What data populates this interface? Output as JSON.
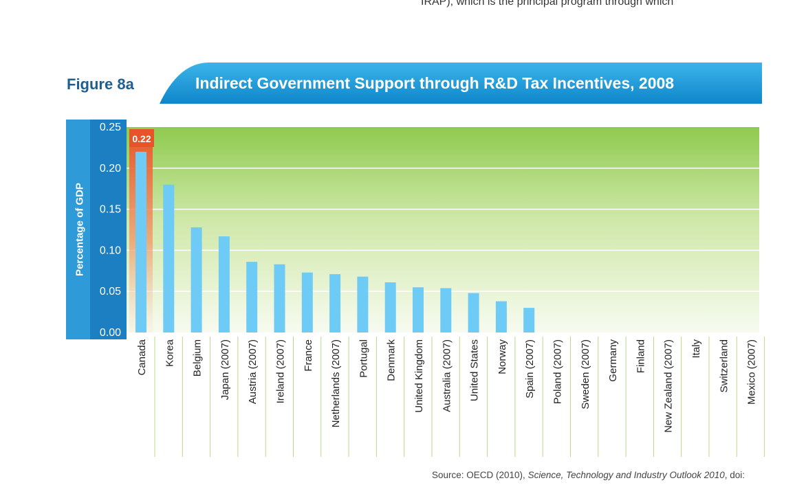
{
  "page": {
    "top_text": "IRAP), which is the principal program through which",
    "figure_label": "Figure 8a",
    "source_prefix": "Source: OECD (2010), ",
    "source_italic": "Science, Technology and Industry Outlook 2010",
    "source_suffix": ", doi:"
  },
  "colors": {
    "banner": "#1a9ad9",
    "bar": "#6dcbf5",
    "highlight": "#e8542a",
    "plot_top": "#8fca4f",
    "plot_bottom": "#f7fbf0",
    "axis": "#1b7fc2"
  },
  "chart_data": {
    "type": "bar",
    "title": "Indirect Government Support through R&D Tax Incentives, 2008",
    "ylabel": "Percentage of GDP",
    "xlabel": "",
    "ylim": [
      0,
      0.25
    ],
    "yticks": [
      "0.00",
      "0.05",
      "0.10",
      "0.15",
      "0.20",
      "0.25"
    ],
    "grid": true,
    "highlight_label": "0.22",
    "categories": [
      "Canada",
      "Korea",
      "Belgium",
      "Japan (2007)",
      "Austria (2007)",
      "Ireland (2007)",
      "France",
      "Netherlands (2007)",
      "Portugal",
      "Denmark",
      "United Kingdom",
      "Australia (2007)",
      "United States",
      "Norway",
      "Spain (2007)",
      "Poland (2007)",
      "Sweden (2007)",
      "Germany",
      "Finland",
      "New Zealand (2007)",
      "Italy",
      "Switzerland",
      "Mexico (2007)"
    ],
    "values": [
      0.22,
      0.18,
      0.128,
      0.117,
      0.086,
      0.083,
      0.073,
      0.071,
      0.068,
      0.061,
      0.055,
      0.054,
      0.048,
      0.038,
      0.03,
      0,
      0,
      0,
      0,
      0,
      0,
      0,
      0
    ]
  }
}
